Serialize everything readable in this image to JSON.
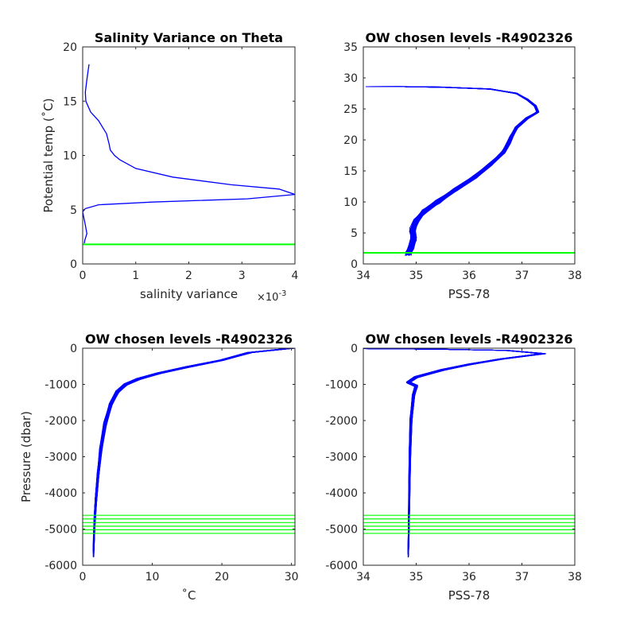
{
  "chart_data": [
    {
      "type": "line",
      "title": "Salinity Variance on Theta",
      "xlabel": "salinity variance",
      "ylabel": "Potential temp (˚C)",
      "x_exponent_label": "×10",
      "x_exponent_value": "-3",
      "xlim": [
        0,
        4
      ],
      "ylim": [
        0,
        20
      ],
      "xticks": [
        0,
        1,
        2,
        3,
        4
      ],
      "xtick_labels": [
        "0",
        "1",
        "2",
        "3",
        "4"
      ],
      "yticks": [
        0,
        5,
        10,
        15,
        20
      ],
      "ytick_labels": [
        "0",
        "5",
        "10",
        "15",
        "20"
      ],
      "grid": false,
      "series": [
        {
          "color": "#0000ff",
          "points": [
            [
              0.12,
              18.4
            ],
            [
              0.08,
              17.0
            ],
            [
              0.05,
              15.8
            ],
            [
              0.06,
              15.0
            ],
            [
              0.15,
              14.0
            ],
            [
              0.3,
              13.2
            ],
            [
              0.45,
              12.0
            ],
            [
              0.5,
              11.0
            ],
            [
              0.52,
              10.5
            ],
            [
              0.6,
              10.0
            ],
            [
              0.7,
              9.6
            ],
            [
              1.0,
              8.8
            ],
            [
              1.7,
              8.0
            ],
            [
              2.8,
              7.3
            ],
            [
              3.7,
              6.9
            ],
            [
              4.0,
              6.4
            ],
            [
              3.1,
              6.0
            ],
            [
              1.3,
              5.7
            ],
            [
              0.3,
              5.45
            ],
            [
              0.05,
              5.1
            ],
            [
              0.0,
              4.8
            ],
            [
              0.05,
              3.6
            ],
            [
              0.08,
              2.8
            ],
            [
              0.04,
              2.2
            ],
            [
              0.03,
              1.9
            ]
          ]
        },
        {
          "color": "#00ff00",
          "points": [
            [
              0,
              1.8
            ],
            [
              4,
              1.8
            ]
          ]
        }
      ]
    },
    {
      "type": "line",
      "title": "OW chosen levels -R4902326",
      "xlabel": "PSS-78",
      "ylabel": "",
      "xlim": [
        34,
        38
      ],
      "ylim": [
        0,
        35
      ],
      "xticks": [
        34,
        35,
        36,
        37,
        38
      ],
      "xtick_labels": [
        "34",
        "35",
        "36",
        "37",
        "38"
      ],
      "yticks": [
        0,
        5,
        10,
        15,
        20,
        25,
        30,
        35
      ],
      "ytick_labels": [
        "0",
        "5",
        "10",
        "15",
        "20",
        "25",
        "30",
        "35"
      ],
      "grid": false,
      "series": [
        {
          "color": "#0000ff",
          "profile": [
            [
              34.85,
              1.6
            ],
            [
              34.9,
              2.5
            ],
            [
              34.95,
              4.0
            ],
            [
              34.93,
              5.5
            ],
            [
              35.0,
              7.0
            ],
            [
              35.15,
              8.5
            ],
            [
              35.4,
              10.0
            ],
            [
              35.75,
              12.0
            ],
            [
              36.1,
              14.0
            ],
            [
              36.4,
              16.0
            ],
            [
              36.65,
              18.0
            ],
            [
              36.75,
              19.5
            ],
            [
              36.8,
              20.5
            ],
            [
              36.9,
              22.0
            ],
            [
              37.1,
              23.5
            ],
            [
              37.3,
              24.5
            ],
            [
              37.25,
              25.5
            ],
            [
              37.1,
              26.5
            ],
            [
              36.9,
              27.5
            ],
            [
              36.4,
              28.2
            ],
            [
              35.5,
              28.5
            ],
            [
              34.7,
              28.6
            ],
            [
              34.05,
              28.6
            ]
          ],
          "profile_count": 70
        },
        {
          "color": "#00ff00",
          "points": [
            [
              34,
              1.8
            ],
            [
              38,
              1.8
            ]
          ]
        }
      ]
    },
    {
      "type": "line",
      "title": "OW chosen levels -R4902326",
      "xlabel": "˚C",
      "ylabel": "Pressure (dbar)",
      "xlim": [
        0,
        30.5
      ],
      "ylim": [
        -6000,
        0
      ],
      "xticks": [
        0,
        10,
        20,
        30
      ],
      "xtick_labels": [
        "0",
        "10",
        "20",
        "30"
      ],
      "yticks": [
        -6000,
        -5000,
        -4000,
        -3000,
        -2000,
        -1000,
        0
      ],
      "ytick_labels": [
        "-6000",
        "-5000",
        "-4000",
        "-3000",
        "-2000",
        "-1000",
        "0"
      ],
      "grid": false,
      "series": [
        {
          "color": "#0000ff",
          "profile": [
            [
              30.0,
              0
            ],
            [
              28.0,
              -40
            ],
            [
              24.0,
              -120
            ],
            [
              20.0,
              -330
            ],
            [
              15.0,
              -520
            ],
            [
              11.0,
              -690
            ],
            [
              8.0,
              -850
            ],
            [
              6.2,
              -1000
            ],
            [
              5.0,
              -1200
            ],
            [
              4.0,
              -1550
            ],
            [
              3.2,
              -2100
            ],
            [
              2.6,
              -2800
            ],
            [
              2.2,
              -3500
            ],
            [
              1.9,
              -4200
            ],
            [
              1.7,
              -4800
            ],
            [
              1.6,
              -5300
            ],
            [
              1.55,
              -5650
            ]
          ],
          "profile_count": 60
        },
        {
          "color": "#00ff00",
          "levels": [
            -4620,
            -4720,
            -4820,
            -4920,
            -5020,
            -5120
          ]
        }
      ]
    },
    {
      "type": "line",
      "title": "OW chosen levels -R4902326",
      "xlabel": "PSS-78",
      "ylabel": "",
      "xlim": [
        34,
        38
      ],
      "ylim": [
        -6000,
        0
      ],
      "xticks": [
        34,
        35,
        36,
        37,
        38
      ],
      "xtick_labels": [
        "34",
        "35",
        "36",
        "37",
        "38"
      ],
      "yticks": [
        -6000,
        -5000,
        -4000,
        -3000,
        -2000,
        -1000,
        0
      ],
      "ytick_labels": [
        "-6000",
        "-5000",
        "-4000",
        "-3000",
        "-2000",
        "-1000",
        "0"
      ],
      "grid": false,
      "series": [
        {
          "color": "#0000ff",
          "profile": [
            [
              34.05,
              -10
            ],
            [
              35.5,
              -30
            ],
            [
              36.7,
              -60
            ],
            [
              37.4,
              -150
            ],
            [
              36.6,
              -300
            ],
            [
              36.0,
              -450
            ],
            [
              35.5,
              -600
            ],
            [
              35.0,
              -800
            ],
            [
              34.85,
              -950
            ],
            [
              35.0,
              -1050
            ],
            [
              34.95,
              -1300
            ],
            [
              34.9,
              -2000
            ],
            [
              34.88,
              -3000
            ],
            [
              34.87,
              -4000
            ],
            [
              34.86,
              -5000
            ],
            [
              34.85,
              -5650
            ]
          ],
          "profile_count": 60
        },
        {
          "color": "#00ff00",
          "levels": [
            -4620,
            -4720,
            -4820,
            -4920,
            -5020,
            -5120
          ]
        }
      ]
    }
  ]
}
